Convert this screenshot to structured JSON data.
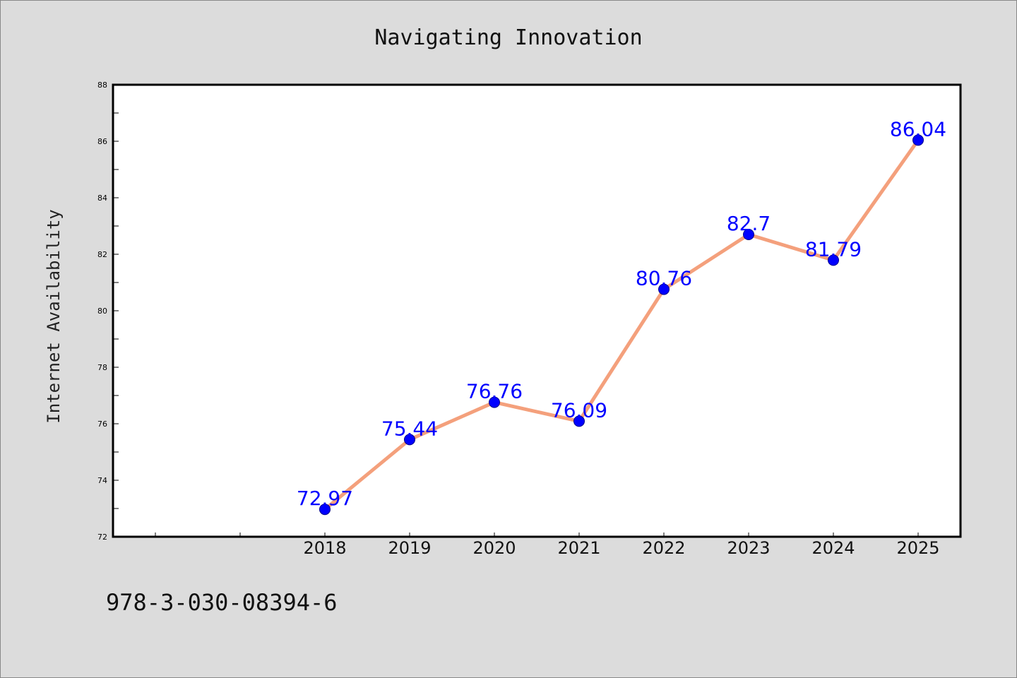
{
  "chart_data": {
    "type": "line",
    "title": "Navigating Innovation",
    "xlabel": "",
    "ylabel": "Internet Availability",
    "categories": [
      "2018",
      "2019",
      "2020",
      "2021",
      "2022",
      "2023",
      "2024",
      "2025"
    ],
    "series": [
      {
        "values": [
          72.97,
          75.44,
          76.76,
          76.09,
          80.76,
          82.7,
          81.79,
          86.04
        ],
        "labels": [
          "72.97",
          "75.44",
          "76.76",
          "76.09",
          "80.76",
          "82.7",
          "81.79",
          "86.04"
        ]
      }
    ],
    "ylim": [
      72,
      88
    ],
    "y_ticks": [
      "72",
      "74",
      "76",
      "78",
      "80",
      "82",
      "84",
      "86",
      "88"
    ],
    "grid": false,
    "legend": "none",
    "colors": {
      "line": "#f4a07c",
      "marker": "#0000ff",
      "data_label": "#0000ff",
      "background": "#dcdcdc",
      "plot_background": "#ffffff"
    }
  },
  "footer": {
    "isbn": "978-3-030-08394-6"
  }
}
